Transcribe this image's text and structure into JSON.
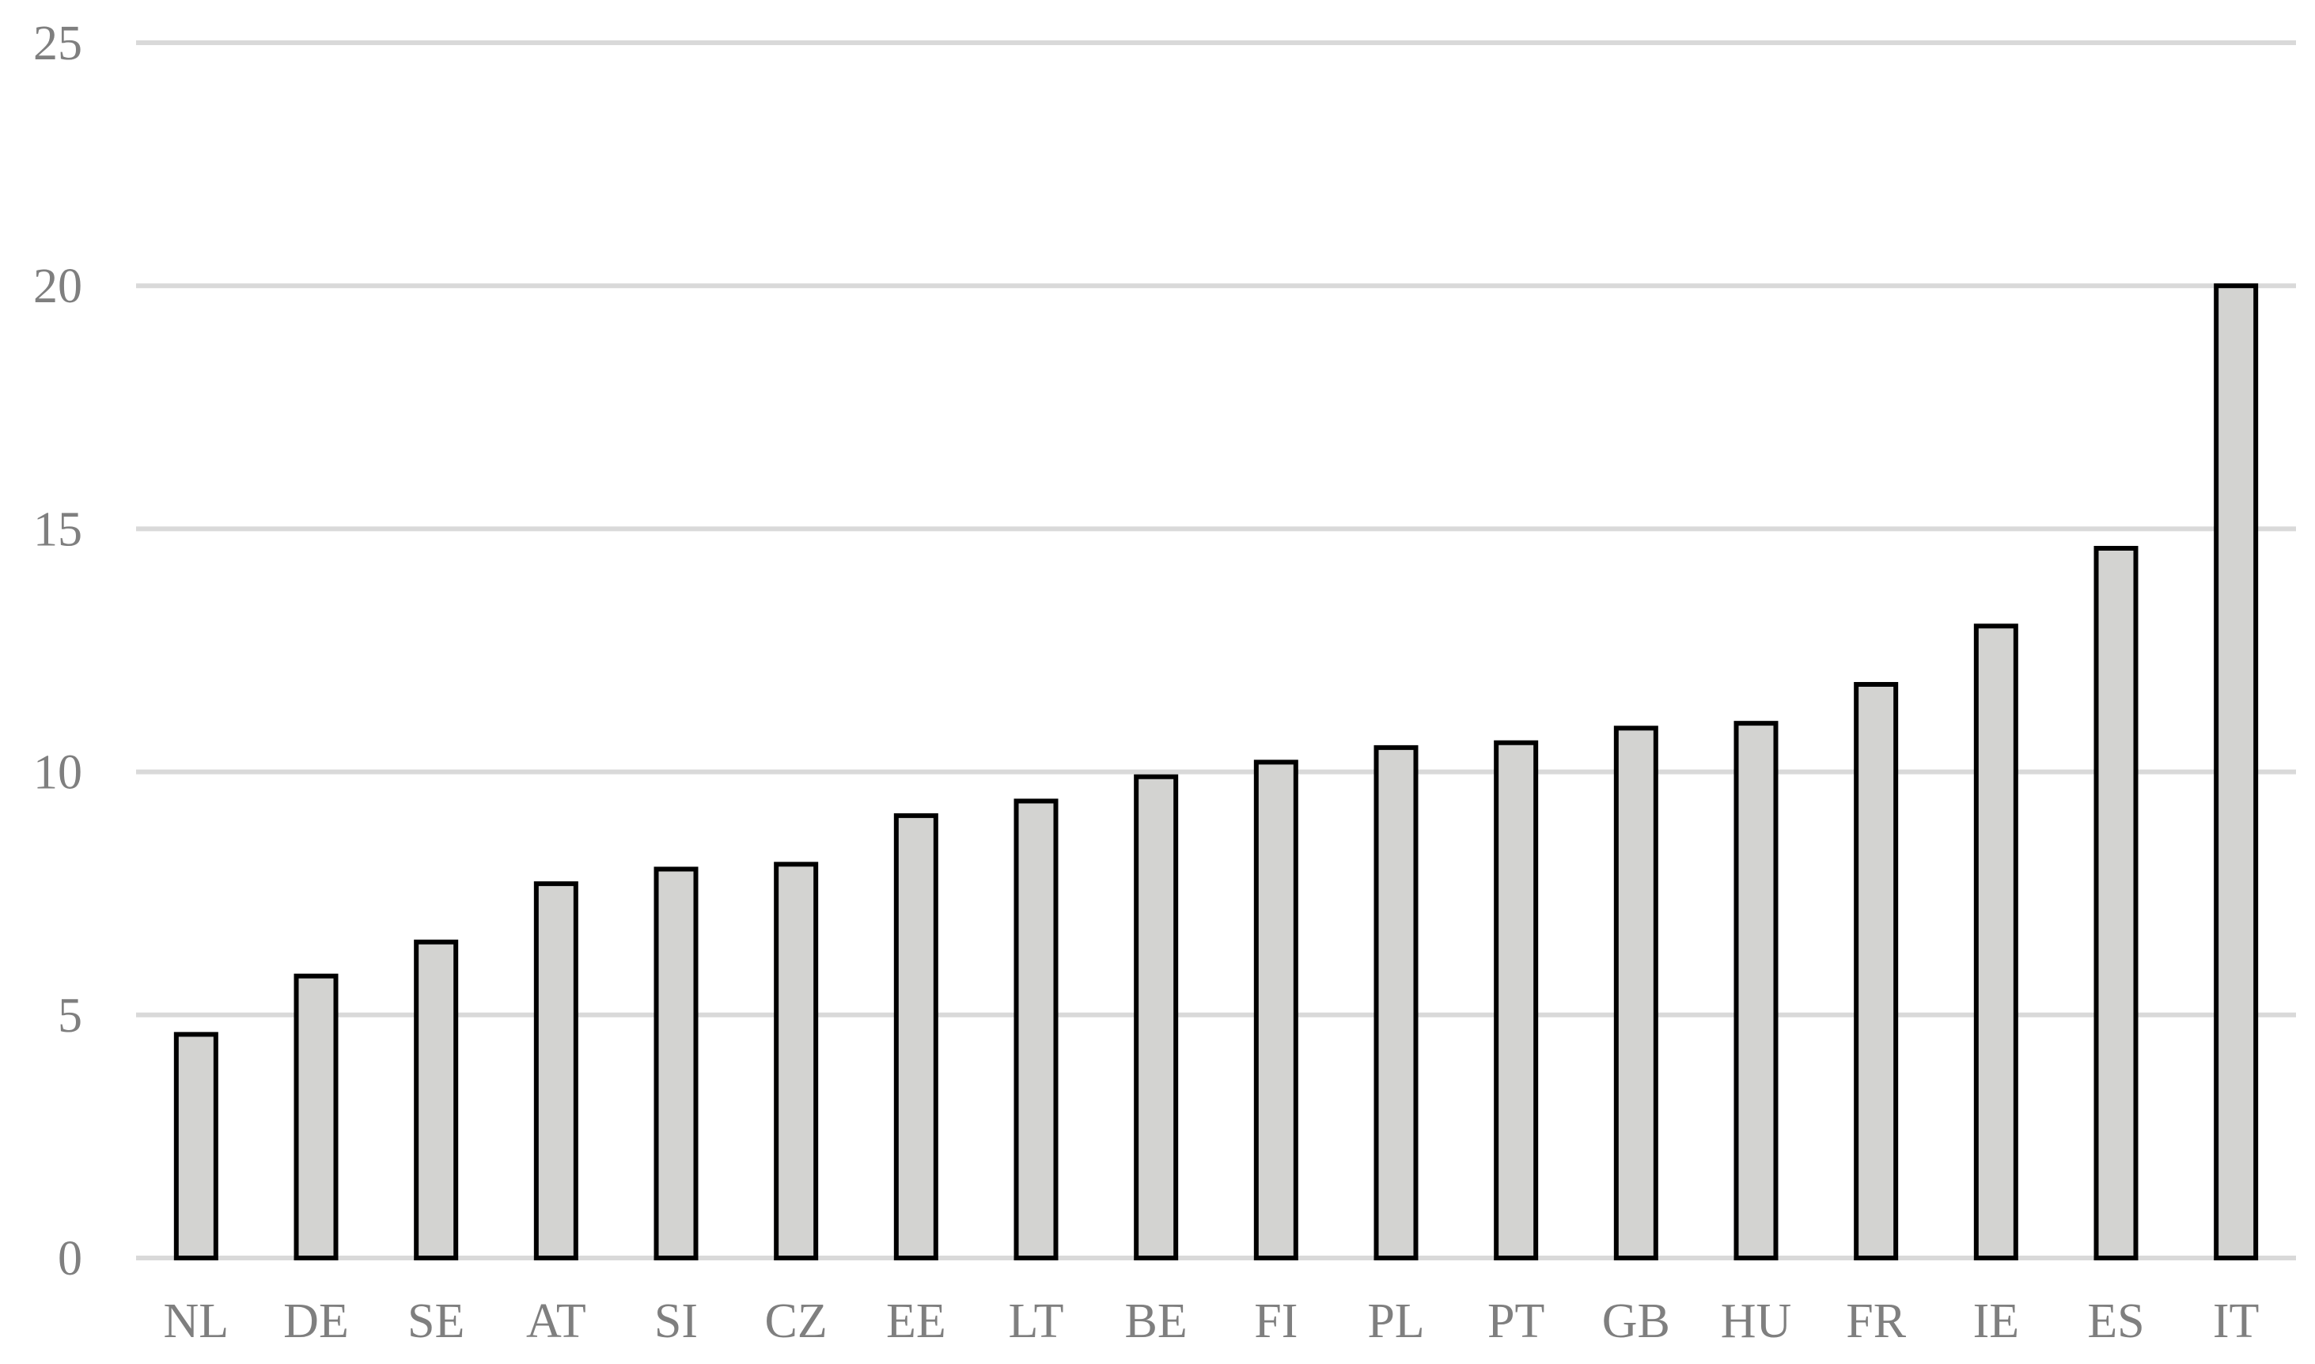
{
  "chart_data": {
    "type": "bar",
    "title": "",
    "xlabel": "",
    "ylabel": "",
    "categories": [
      "NL",
      "DE",
      "SE",
      "AT",
      "SI",
      "CZ",
      "EE",
      "LT",
      "BE",
      "FI",
      "PL",
      "PT",
      "GB",
      "HU",
      "FR",
      "IE",
      "ES",
      "IT"
    ],
    "values": [
      4.6,
      5.8,
      6.5,
      7.7,
      8.0,
      8.1,
      9.1,
      9.4,
      9.9,
      10.2,
      10.5,
      10.6,
      10.9,
      11.0,
      11.8,
      13.0,
      14.6,
      20.0
    ],
    "ylim": [
      0,
      25
    ],
    "yticks": [
      "0",
      "5",
      "10",
      "15",
      "20",
      "25"
    ],
    "grid": true,
    "legend": "none",
    "colors": {
      "bar_fill": "#d3d3d1",
      "bar_stroke": "#000000",
      "grid": "#d9d9d9",
      "tick_text": "#7f7f7f"
    }
  }
}
